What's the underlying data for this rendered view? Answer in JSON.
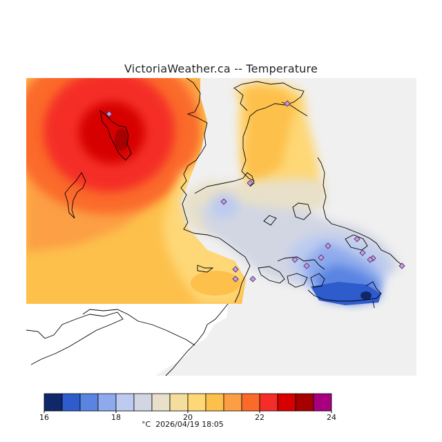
{
  "title": "VictoriaWeather.ca  --  Temperature",
  "legend": {
    "unit": "°C",
    "timestamp": "2026/04/19 18:05",
    "min": 16,
    "max": 24,
    "tick_labels": [
      "16",
      "18",
      "20",
      "22",
      "24"
    ],
    "colors": [
      "#10276a",
      "#2f5ccc",
      "#5a84e2",
      "#8eaaec",
      "#bccbef",
      "#d2d6e3",
      "#e8e0c9",
      "#f5dd9c",
      "#fed776",
      "#fdc04b",
      "#fc9f44",
      "#fb6a29",
      "#f42d28",
      "#d60000",
      "#a70000",
      "#a8007e"
    ]
  },
  "map": {
    "background_color": "#f0f0f0",
    "station_markers": 16
  }
}
